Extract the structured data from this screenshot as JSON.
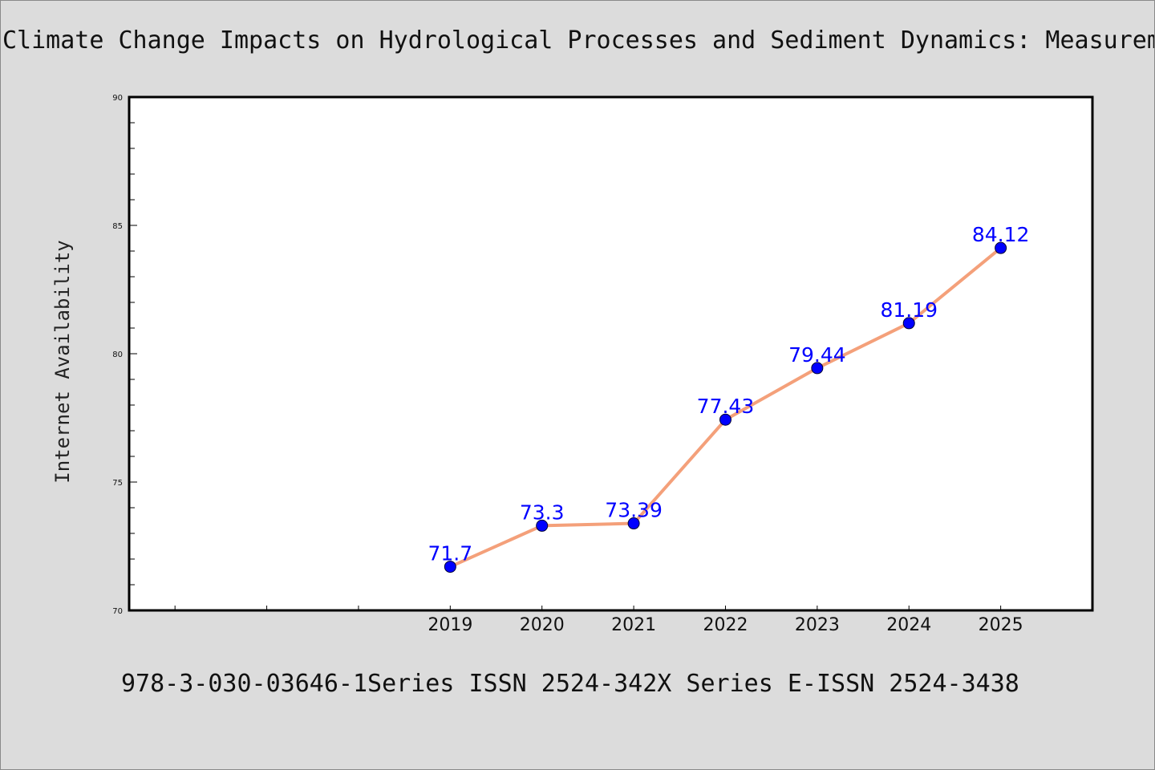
{
  "title": "Climate Change Impacts on Hydrological Processes and Sediment Dynamics: Measurem",
  "footer": "978-3-030-03646-1Series ISSN 2524-342X Series E-ISSN 2524-3438",
  "chart_data": {
    "type": "line",
    "title": "Climate Change Impacts on Hydrological Processes and Sediment Dynamics: Measurem",
    "xlabel": "",
    "ylabel": "Internet Availability",
    "x": [
      2019,
      2020,
      2021,
      2022,
      2023,
      2024,
      2025
    ],
    "x_tick_labels": [
      "2019",
      "2020",
      "2021",
      "2022",
      "2023",
      "2024",
      "2025"
    ],
    "xlim": [
      2015.5,
      2026
    ],
    "series": [
      {
        "values": [
          71.7,
          73.3,
          73.39,
          77.43,
          79.44,
          81.19,
          84.12
        ],
        "labels": [
          "71.7",
          "73.3",
          "73.39",
          "77.43",
          "79.44",
          "81.19",
          "84.12"
        ]
      }
    ],
    "ylim": [
      70,
      90
    ],
    "y_ticks": [
      70,
      75,
      80,
      85,
      90
    ],
    "y_tick_labels": [
      "70",
      "75",
      "80",
      "85",
      "90"
    ],
    "grid": false,
    "colors": {
      "line": "#f4a07a",
      "marker": "#0000ff",
      "label": "#0000ff",
      "background": "#dcdcdc",
      "plot_area": "#ffffff"
    }
  }
}
